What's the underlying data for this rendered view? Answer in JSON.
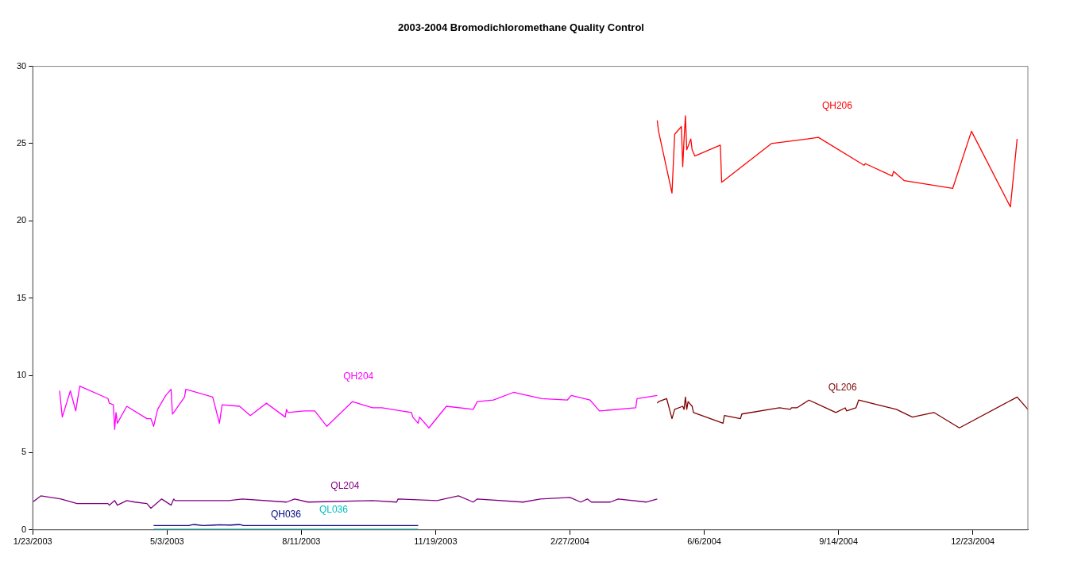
{
  "chart_data": {
    "type": "line",
    "title": "2003-2004 Bromodichloromethane Quality Control",
    "xlim": [
      "2003-01-23",
      "2005-02-02"
    ],
    "xticks": [
      {
        "value": "2003-01-23",
        "label": "1/23/2003"
      },
      {
        "value": "2003-05-03",
        "label": "5/3/2003"
      },
      {
        "value": "2003-08-11",
        "label": "8/11/2003"
      },
      {
        "value": "2003-11-19",
        "label": "11/19/2003"
      },
      {
        "value": "2004-02-27",
        "label": "2/27/2004"
      },
      {
        "value": "2004-06-06",
        "label": "6/6/2004"
      },
      {
        "value": "2004-09-14",
        "label": "9/14/2004"
      },
      {
        "value": "2004-12-23",
        "label": "12/23/2004"
      }
    ],
    "ylim": [
      0,
      30
    ],
    "yticks": [
      0,
      5,
      10,
      15,
      20,
      25,
      30
    ],
    "grid": false,
    "legend": false,
    "marker": "none",
    "line_style": "solid",
    "series": [
      {
        "name": "QH206",
        "color": "#ff0000",
        "x": [
          "2004-05-02",
          "2004-05-03",
          "2004-05-13",
          "2004-05-15",
          "2004-05-20",
          "2004-05-21",
          "2004-05-22",
          "2004-05-23",
          "2004-05-24",
          "2004-05-27",
          "2004-05-28",
          "2004-05-30",
          "2004-06-18",
          "2004-06-19",
          "2004-07-26",
          "2004-08-30",
          "2004-10-03",
          "2004-10-04",
          "2004-10-24",
          "2004-10-25",
          "2004-11-02",
          "2004-12-08",
          "2004-12-22",
          "2005-01-20",
          "2005-01-25"
        ],
        "values": [
          26.5,
          25.8,
          21.8,
          25.6,
          26.1,
          23.5,
          25.3,
          26.8,
          24.6,
          25.3,
          24.6,
          24.2,
          24.9,
          22.5,
          25.0,
          25.4,
          23.6,
          23.7,
          22.9,
          23.2,
          22.6,
          22.1,
          25.8,
          20.9,
          25.3
        ]
      },
      {
        "name": "QL206",
        "color": "#800000",
        "x": [
          "2004-05-02",
          "2004-05-03",
          "2004-05-09",
          "2004-05-13",
          "2004-05-15",
          "2004-05-21",
          "2004-05-22",
          "2004-05-23",
          "2004-05-24",
          "2004-05-25",
          "2004-05-28",
          "2004-05-29",
          "2004-06-20",
          "2004-06-21",
          "2004-07-03",
          "2004-07-04",
          "2004-08-01",
          "2004-08-09",
          "2004-08-10",
          "2004-08-14",
          "2004-08-23",
          "2004-09-12",
          "2004-09-19",
          "2004-09-20",
          "2004-09-27",
          "2004-09-29",
          "2004-10-27",
          "2004-11-08",
          "2004-11-24",
          "2004-12-13",
          "2005-01-25",
          "2005-02-02"
        ],
        "values": [
          8.2,
          8.3,
          8.5,
          7.2,
          7.8,
          8.0,
          7.8,
          8.6,
          7.8,
          8.3,
          8.0,
          7.6,
          6.9,
          7.4,
          7.2,
          7.5,
          7.9,
          7.8,
          7.9,
          7.9,
          8.4,
          7.6,
          7.9,
          7.7,
          7.9,
          8.4,
          7.8,
          7.3,
          7.6,
          6.6,
          8.6,
          7.8
        ]
      },
      {
        "name": "QH204",
        "color": "#ff00ff",
        "x": [
          "2003-02-12",
          "2003-02-14",
          "2003-02-20",
          "2003-02-24",
          "2003-02-27",
          "2003-03-20",
          "2003-03-21",
          "2003-03-24",
          "2003-03-25",
          "2003-03-26",
          "2003-03-27",
          "2003-04-03",
          "2003-04-18",
          "2003-04-21",
          "2003-04-23",
          "2003-04-26",
          "2003-05-02",
          "2003-05-06",
          "2003-05-07",
          "2003-05-08",
          "2003-05-16",
          "2003-05-17",
          "2003-06-06",
          "2003-06-11",
          "2003-06-13",
          "2003-06-26",
          "2003-07-04",
          "2003-07-16",
          "2003-07-30",
          "2003-07-31",
          "2003-08-01",
          "2003-08-13",
          "2003-08-21",
          "2003-08-30",
          "2003-09-18",
          "2003-10-03",
          "2003-10-10",
          "2003-11-01",
          "2003-11-02",
          "2003-11-06",
          "2003-11-07",
          "2003-11-14",
          "2003-11-27",
          "2003-12-17",
          "2003-12-20",
          "2004-01-01",
          "2004-01-16",
          "2004-02-06",
          "2004-02-25",
          "2004-02-28",
          "2004-03-13",
          "2004-03-20",
          "2004-04-16",
          "2004-04-17",
          "2004-05-02"
        ],
        "values": [
          9.0,
          7.3,
          9.0,
          7.7,
          9.3,
          8.5,
          8.2,
          8.1,
          6.5,
          7.6,
          6.9,
          8.0,
          7.2,
          7.2,
          6.7,
          7.8,
          8.7,
          9.1,
          7.5,
          7.6,
          8.6,
          9.1,
          8.6,
          6.9,
          8.1,
          8.0,
          7.4,
          8.2,
          7.3,
          7.8,
          7.6,
          7.7,
          7.7,
          6.7,
          8.3,
          7.9,
          7.9,
          7.6,
          7.3,
          6.9,
          7.3,
          6.6,
          8.0,
          7.8,
          8.3,
          8.4,
          8.9,
          8.5,
          8.4,
          8.7,
          8.4,
          7.7,
          7.9,
          8.5,
          8.7
        ]
      },
      {
        "name": "QL204",
        "color": "#800080",
        "x": [
          "2003-01-23",
          "2003-01-29",
          "2003-02-13",
          "2003-02-25",
          "2003-03-20",
          "2003-03-21",
          "2003-03-25",
          "2003-03-27",
          "2003-04-03",
          "2003-04-09",
          "2003-04-18",
          "2003-04-21",
          "2003-04-29",
          "2003-05-06",
          "2003-05-08",
          "2003-05-09",
          "2003-06-18",
          "2003-06-28",
          "2003-07-31",
          "2003-08-06",
          "2003-08-16",
          "2003-10-03",
          "2003-10-21",
          "2003-10-22",
          "2003-11-20",
          "2003-12-06",
          "2003-12-17",
          "2003-12-20",
          "2004-01-23",
          "2004-02-05",
          "2004-02-27",
          "2004-03-06",
          "2004-03-11",
          "2004-03-14",
          "2004-03-28",
          "2004-04-03",
          "2004-04-24",
          "2004-05-02"
        ],
        "values": [
          1.8,
          2.2,
          2.0,
          1.7,
          1.7,
          1.6,
          1.9,
          1.6,
          1.9,
          1.8,
          1.7,
          1.4,
          2.0,
          1.6,
          2.0,
          1.9,
          1.9,
          2.0,
          1.8,
          2.0,
          1.8,
          1.9,
          1.8,
          2.0,
          1.9,
          2.2,
          1.8,
          2.0,
          1.8,
          2.0,
          2.1,
          1.8,
          2.0,
          1.8,
          1.8,
          2.0,
          1.8,
          2.0
        ]
      },
      {
        "name": "QH036",
        "color": "#000080",
        "x": [
          "2003-04-23",
          "2003-05-19",
          "2003-05-23",
          "2003-05-30",
          "2003-06-07",
          "2003-06-11",
          "2003-06-19",
          "2003-06-26",
          "2003-06-29",
          "2003-11-06"
        ],
        "values": [
          0.28,
          0.28,
          0.35,
          0.28,
          0.31,
          0.33,
          0.31,
          0.35,
          0.28,
          0.28
        ]
      },
      {
        "name": "QL036",
        "color": "#00c0c0",
        "x": [
          "2003-04-23",
          "2003-11-06"
        ],
        "values": [
          0.05,
          0.05
        ]
      }
    ]
  }
}
